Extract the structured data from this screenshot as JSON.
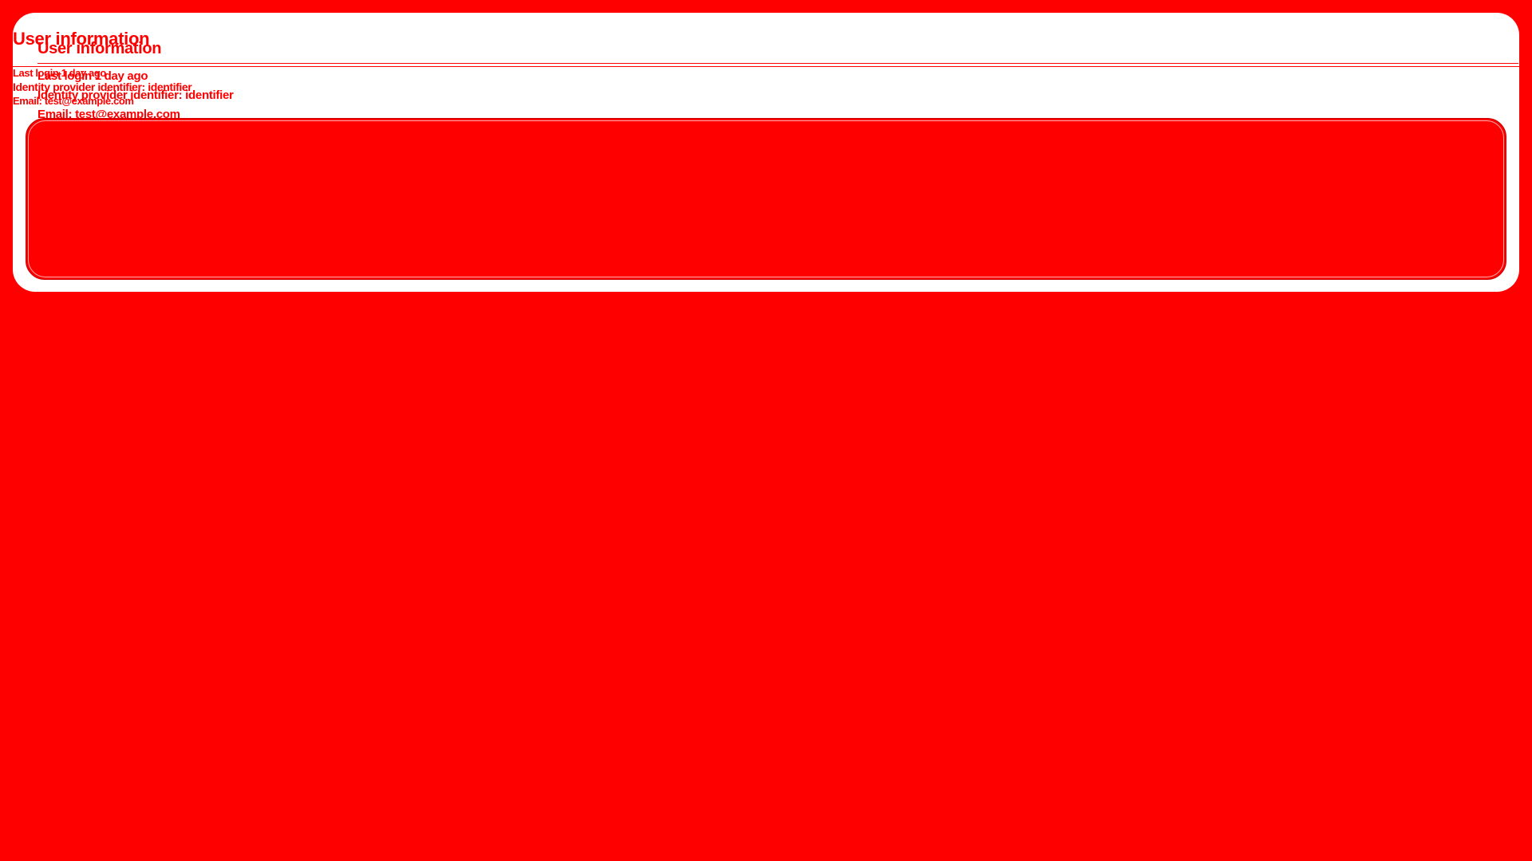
{
  "card": {
    "title": "User information",
    "last_login": "Last login 1 day ago",
    "identity_provider": "Identity provider identifier: identifier",
    "email": "Email: test@example.com"
  },
  "overlay": {
    "title": "User information",
    "last_login": "Last login 1 day ago",
    "identity_provider": "Identity provider identifier: identifier",
    "email": "Email: test@example.com"
  },
  "colors": {
    "background": "#ff0000",
    "card": "#ffffff",
    "text": "#ff0000"
  }
}
